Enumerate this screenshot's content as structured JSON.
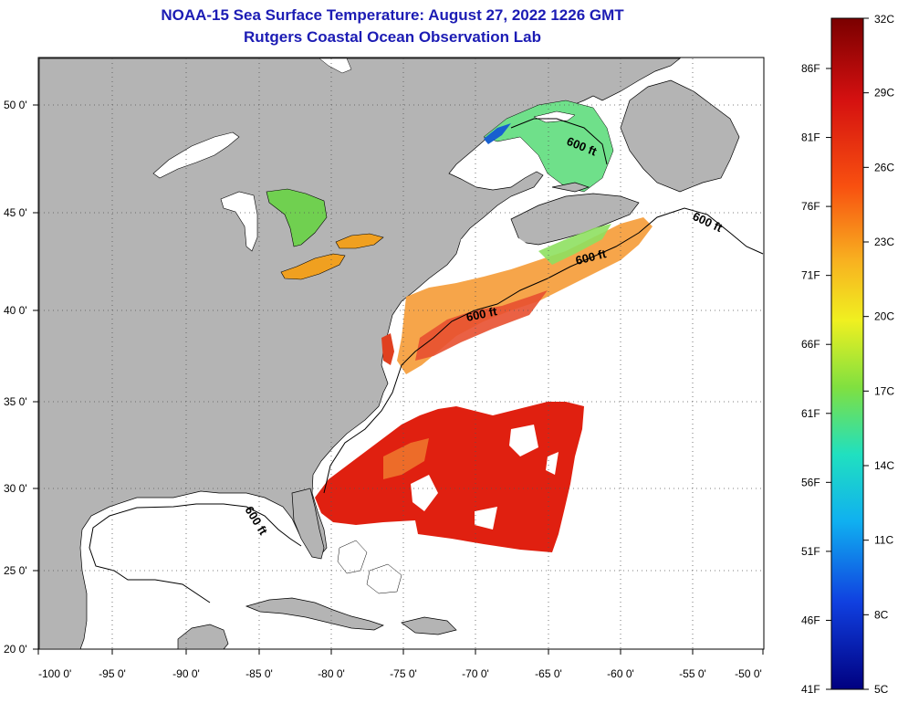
{
  "title": "NOAA-15 Sea Surface Temperature:  August 27, 2022 1226 GMT",
  "subtitle": "Rutgers Coastal Ocean Observation Lab",
  "lon_labels": [
    "-100 0'",
    "-95 0'",
    "-90 0'",
    "-85 0'",
    "-80 0'",
    "-75 0'",
    "-70 0'",
    "-65 0'",
    "-60 0'",
    "-55 0'",
    "-50 0'"
  ],
  "lat_labels": [
    "50 0'",
    "45 0'",
    "40 0'",
    "35 0'",
    "30 0'",
    "25 0'",
    "20 0'"
  ],
  "contour_labels": [
    "600 ft",
    "600 ft",
    "600 ft",
    "600 ft",
    "600 ft"
  ],
  "colorbar": {
    "celsius": [
      "32C",
      "29C",
      "26C",
      "23C",
      "20C",
      "17C",
      "14C",
      "11C",
      "8C",
      "5C"
    ],
    "fahrenheit": [
      "86F",
      "81F",
      "76F",
      "71F",
      "66F",
      "61F",
      "56F",
      "51F",
      "46F",
      "41F"
    ]
  },
  "colors": {
    "land": "#b4b4b4",
    "ocean_nodata": "#ffffff",
    "title": "#1c1cb4",
    "sst_warm": "#e02010",
    "sst_mid": "#f8a020",
    "sst_cool": "#60e060"
  }
}
